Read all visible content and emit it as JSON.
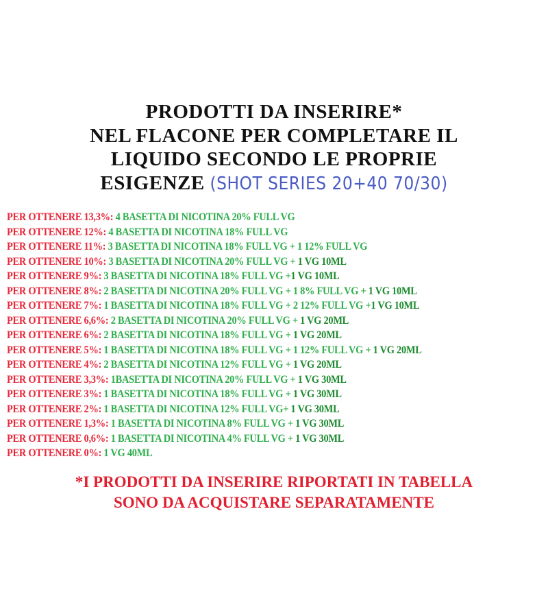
{
  "title": {
    "line1": "PRODOTTI DA INSERIRE*",
    "line2": "NEL FLACONE PER COMPLETARE IL",
    "line3": "LIQUIDO SECONDO LE PROPRIE",
    "line4": "ESIGENZE",
    "accent": "(SHOT SERIES 20+40 70/30)"
  },
  "colors": {
    "label": "#e8283a",
    "text": "#2fae4c",
    "extra": "#1c8a2e",
    "accent": "#4a5bc4",
    "footer": "#e02030"
  },
  "rows": [
    {
      "label": "PER OTTENERE 13,3%:",
      "text": "4 BASETTA DI NICOTINA 20% FULL VG",
      "extra": ""
    },
    {
      "label": "PER OTTENERE 12%:",
      "text": "4 BASETTA DI NICOTINA 18% FULL VG",
      "extra": ""
    },
    {
      "label": "PER OTTENERE 11%:",
      "text": "3 BASETTA DI NICOTINA 18% FULL VG + 1 12% FULL VG",
      "extra": ""
    },
    {
      "label": "PER OTTENERE 10%:",
      "text": "3 BASETTA DI NICOTINA 20% FULL VG +",
      "extra": " 1 VG 10ML"
    },
    {
      "label": "PER OTTENERE 9%:",
      "text": "3 BASETTA DI NICOTINA 18% FULL VG +",
      "extra": "1 VG 10ML"
    },
    {
      "label": "PER OTTENERE 8%:",
      "text": "2 BASETTA DI NICOTINA 20% FULL VG + 1 8% FULL VG +",
      "extra": " 1 VG 10ML"
    },
    {
      "label": "PER OTTENERE 7%:",
      "text": "1 BASETTA DI NICOTINA 18% FULL VG + 2 12% FULL VG +",
      "extra": "1 VG 10ML"
    },
    {
      "label": "PER OTTENERE 6,6%:",
      "text": "2 BASETTA DI NICOTINA 20% FULL VG +",
      "extra": " 1 VG 20ML"
    },
    {
      "label": "PER OTTENERE 6%:",
      "text": "2 BASETTA DI NICOTINA 18% FULL VG +",
      "extra": " 1 VG 20ML"
    },
    {
      "label": "PER OTTENERE 5%:",
      "text": "1 BASETTA DI NICOTINA 18% FULL VG + 1 12% FULL VG +",
      "extra": " 1 VG 20ML"
    },
    {
      "label": "PER OTTENERE 4%:",
      "text": "2 BASETTA DI NICOTINA 12% FULL VG +",
      "extra": " 1 VG 20ML"
    },
    {
      "label": "PER OTTENERE 3,3%:",
      "text": "1BASETTA DI NICOTINA 20% FULL VG +",
      "extra": " 1 VG 30ML"
    },
    {
      "label": "PER OTTENERE 3%:",
      "text": "1 BASETTA DI NICOTINA 18% FULL VG +",
      "extra": " 1 VG 30ML"
    },
    {
      "label": "PER OTTENERE 2%:",
      "text": "1 BASETTA DI NICOTINA 12% FULL VG+",
      "extra": " 1 VG 30ML"
    },
    {
      "label": "PER OTTENERE 1,3%:",
      "text": "1 BASETTA DI NICOTINA 8% FULL VG +",
      "extra": "  1 VG 30ML"
    },
    {
      "label": "PER OTTENERE 0,6%:",
      "text": "1 BASETTA DI NICOTINA 4% FULL VG +",
      "extra": " 1 VG 30ML"
    },
    {
      "label": "PER OTTENERE 0%:",
      "text": "1 VG 40ML",
      "extra": ""
    }
  ],
  "footer": {
    "line1": "*I PRODOTTI DA INSERIRE RIPORTATI IN TABELLA",
    "line2": "SONO DA ACQUISTARE SEPARATAMENTE"
  }
}
